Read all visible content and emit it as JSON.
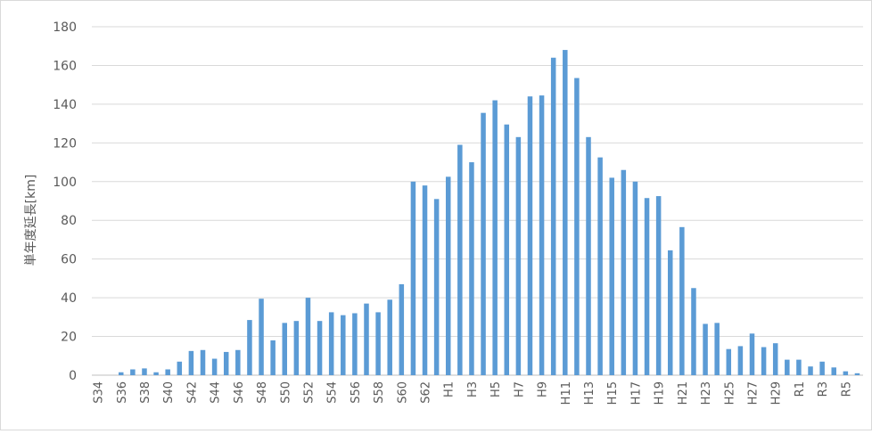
{
  "chart_data": {
    "type": "bar",
    "title": "",
    "xlabel": "",
    "ylabel": "単年度延長[km]",
    "ylim": [
      0,
      180
    ],
    "yticks": [
      0,
      20,
      40,
      60,
      80,
      100,
      120,
      140,
      160,
      180
    ],
    "grid": true,
    "bar_color": "#5b9bd5",
    "grid_color": "#d9d9d9",
    "categories": [
      "S34",
      "S35",
      "S36",
      "S37",
      "S38",
      "S39",
      "S40",
      "S41",
      "S42",
      "S43",
      "S44",
      "S45",
      "S46",
      "S47",
      "S48",
      "S49",
      "S50",
      "S51",
      "S52",
      "S53",
      "S54",
      "S55",
      "S56",
      "S57",
      "S58",
      "S59",
      "S60",
      "S61",
      "S62",
      "S63",
      "H1",
      "H2",
      "H3",
      "H4",
      "H5",
      "H6",
      "H7",
      "H8",
      "H9",
      "H10",
      "H11",
      "H12",
      "H13",
      "H14",
      "H15",
      "H16",
      "H17",
      "H18",
      "H19",
      "H20",
      "H21",
      "H22",
      "H23",
      "H24",
      "H25",
      "H26",
      "H27",
      "H28",
      "H29",
      "H30",
      "R1",
      "R2",
      "R3",
      "R4",
      "R5",
      "R6"
    ],
    "tick_labels": [
      "S34",
      "",
      "S36",
      "",
      "S38",
      "",
      "S40",
      "",
      "S42",
      "",
      "S44",
      "",
      "S46",
      "",
      "S48",
      "",
      "S50",
      "",
      "S52",
      "",
      "S54",
      "",
      "S56",
      "",
      "S58",
      "",
      "S60",
      "",
      "S62",
      "",
      "H1",
      "",
      "H3",
      "",
      "H5",
      "",
      "H7",
      "",
      "H9",
      "",
      "H11",
      "",
      "H13",
      "",
      "H15",
      "",
      "H17",
      "",
      "H19",
      "",
      "H21",
      "",
      "H23",
      "",
      "H25",
      "",
      "H27",
      "",
      "H29",
      "",
      "R1",
      "",
      "R3",
      "",
      "R5",
      ""
    ],
    "values": [
      0,
      0,
      1.5,
      3,
      3.5,
      1.5,
      3,
      7,
      12.5,
      13,
      8.5,
      12,
      13,
      28.5,
      39.5,
      18,
      27,
      28,
      40,
      28,
      32.5,
      31,
      32,
      37,
      32.5,
      39,
      47,
      100,
      98,
      91,
      102.5,
      119,
      110,
      135.5,
      142,
      129.5,
      123,
      144,
      144.5,
      164,
      168,
      153.5,
      123,
      112.5,
      102,
      106,
      100,
      91.5,
      92.5,
      64.5,
      76.5,
      45,
      26.5,
      27,
      13.5,
      15,
      21.5,
      14.5,
      16.5,
      8,
      8,
      4.5,
      7,
      4,
      2,
      1
    ]
  }
}
